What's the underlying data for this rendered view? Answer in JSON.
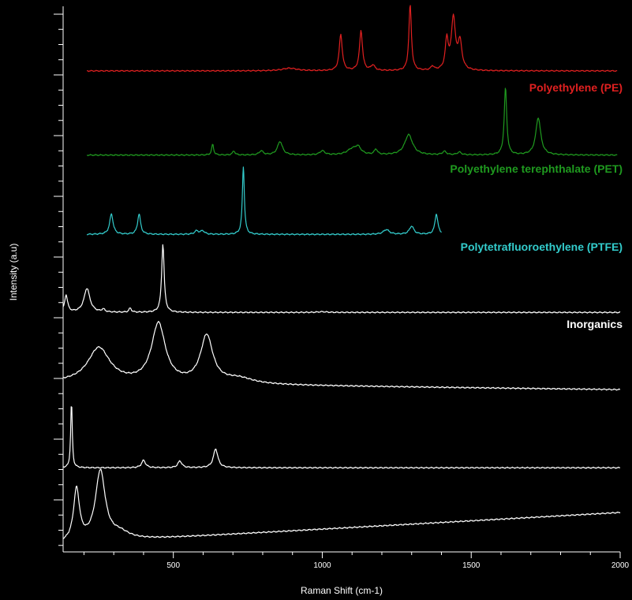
{
  "chart_data": {
    "type": "line",
    "xlabel": "Raman Shift (cm-1)",
    "ylabel": "Intensity (a.u)",
    "xlim": [
      130,
      2000
    ],
    "xticks": [
      500,
      1000,
      1500,
      2000
    ],
    "y_ticks_shown": true,
    "y_tick_labels_shown": false,
    "stacked_offset": true,
    "series": [
      {
        "name": "Polyethylene (PE)",
        "color": "#e02020",
        "x_range": [
          210,
          1990
        ],
        "baseline": 0.12,
        "baseline_end": 0.12,
        "peaks": [
          {
            "x": 890,
            "h": 0.04,
            "w": 30
          },
          {
            "x": 1062,
            "h": 0.55,
            "w": 6
          },
          {
            "x": 1130,
            "h": 0.6,
            "w": 6
          },
          {
            "x": 1170,
            "h": 0.08,
            "w": 8
          },
          {
            "x": 1295,
            "h": 1.0,
            "w": 5
          },
          {
            "x": 1370,
            "h": 0.06,
            "w": 6
          },
          {
            "x": 1418,
            "h": 0.45,
            "w": 6
          },
          {
            "x": 1440,
            "h": 0.78,
            "w": 8
          },
          {
            "x": 1462,
            "h": 0.42,
            "w": 8
          }
        ]
      },
      {
        "name": "Polyethylene terephthalate (PET)",
        "color": "#1f9a1f",
        "x_range": [
          210,
          1990
        ],
        "baseline": 0.05,
        "baseline_end": 0.05,
        "peaks": [
          {
            "x": 632,
            "h": 0.16,
            "w": 4
          },
          {
            "x": 703,
            "h": 0.06,
            "w": 5
          },
          {
            "x": 795,
            "h": 0.06,
            "w": 8
          },
          {
            "x": 858,
            "h": 0.2,
            "w": 10
          },
          {
            "x": 1000,
            "h": 0.06,
            "w": 10
          },
          {
            "x": 1100,
            "h": 0.08,
            "w": 20
          },
          {
            "x": 1120,
            "h": 0.1,
            "w": 12
          },
          {
            "x": 1180,
            "h": 0.08,
            "w": 6
          },
          {
            "x": 1290,
            "h": 0.3,
            "w": 16
          },
          {
            "x": 1410,
            "h": 0.05,
            "w": 8
          },
          {
            "x": 1460,
            "h": 0.04,
            "w": 8
          },
          {
            "x": 1615,
            "h": 1.0,
            "w": 5
          },
          {
            "x": 1725,
            "h": 0.55,
            "w": 10
          }
        ]
      },
      {
        "name": "Polytetrafluoroethylene (PTFE)",
        "color": "#33cccc",
        "x_range": [
          210,
          1400
        ],
        "baseline": 0.02,
        "baseline_end": 0.02,
        "peaks": [
          {
            "x": 292,
            "h": 0.3,
            "w": 7
          },
          {
            "x": 385,
            "h": 0.3,
            "w": 6
          },
          {
            "x": 578,
            "h": 0.05,
            "w": 8
          },
          {
            "x": 598,
            "h": 0.05,
            "w": 8
          },
          {
            "x": 735,
            "h": 1.0,
            "w": 4
          },
          {
            "x": 1215,
            "h": 0.07,
            "w": 12
          },
          {
            "x": 1300,
            "h": 0.12,
            "w": 9
          },
          {
            "x": 1383,
            "h": 0.3,
            "w": 6
          }
        ]
      },
      {
        "color": "#ffffff",
        "x_range": [
          130,
          2000
        ],
        "baseline": 0.02,
        "baseline_end": 0.02,
        "peaks": [
          {
            "x": 140,
            "h": 0.25,
            "w": 6
          },
          {
            "x": 210,
            "h": 0.35,
            "w": 12
          },
          {
            "x": 265,
            "h": 0.04,
            "w": 6
          },
          {
            "x": 355,
            "h": 0.06,
            "w": 5
          },
          {
            "x": 465,
            "h": 1.0,
            "w": 5
          },
          {
            "x": 1000,
            "h": 0.01,
            "w": 20
          }
        ]
      },
      {
        "color": "#ffffff",
        "x_range": [
          130,
          2000
        ],
        "baseline": 0.12,
        "baseline_end": 0.02,
        "peaks": [
          {
            "x": 250,
            "h": 0.5,
            "w": 45
          },
          {
            "x": 450,
            "h": 0.85,
            "w": 28
          },
          {
            "x": 612,
            "h": 0.68,
            "w": 25
          },
          {
            "x": 720,
            "h": 0.08,
            "w": 60
          }
        ]
      },
      {
        "color": "#ffffff",
        "x_range": [
          130,
          2000
        ],
        "baseline": 0.02,
        "baseline_end": 0.02,
        "peaks": [
          {
            "x": 158,
            "h": 1.0,
            "w": 3
          },
          {
            "x": 400,
            "h": 0.11,
            "w": 8
          },
          {
            "x": 522,
            "h": 0.1,
            "w": 8
          },
          {
            "x": 642,
            "h": 0.28,
            "w": 9
          }
        ]
      },
      {
        "color": "#ffffff",
        "x_range": [
          130,
          2000
        ],
        "baseline": 0.05,
        "baseline_end": 0.5,
        "peaks": [
          {
            "x": 175,
            "h": 0.75,
            "w": 12
          },
          {
            "x": 255,
            "h": 1.0,
            "w": 20
          },
          {
            "x": 320,
            "h": 0.1,
            "w": 40
          }
        ]
      }
    ],
    "annotations": [
      {
        "text": "Polyethylene (PE)",
        "color": "#e02020",
        "series": 0
      },
      {
        "text": "Polyethylene terephthalate (PET)",
        "color": "#1f9a1f",
        "series": 1
      },
      {
        "text": "Polytetrafluoroethylene (PTFE)",
        "color": "#33cccc",
        "series": 2
      },
      {
        "text": "Inorganics",
        "color": "#ffffff",
        "series": 3
      }
    ]
  }
}
